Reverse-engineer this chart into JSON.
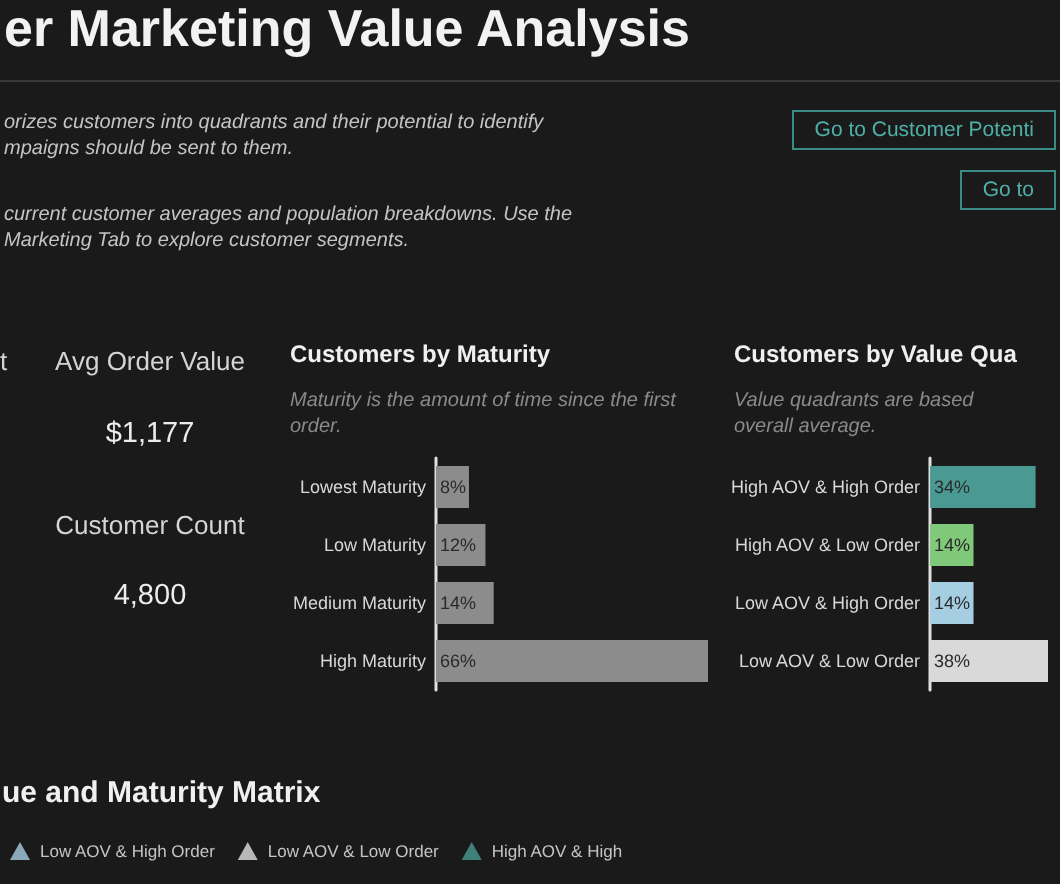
{
  "chart_data": [
    {
      "type": "other",
      "title": "er Marketing Value Analysis",
      "annotations": [
        "orizes customers into quadrants and their potential to identify",
        "mpaigns should be sent to them.",
        "current customer averages and population breakdowns. Use the",
        "Marketing Tab to explore customer segments.",
        "Go to Customer Potenti",
        "Go to"
      ]
    },
    {
      "type": "other",
      "annotations": [
        "t",
        "Avg Order Value",
        "$1,177",
        "Customer Count",
        "4,800"
      ]
    },
    {
      "type": "bar",
      "orientation": "horizontal",
      "title": "Customers by Maturity",
      "subtitle": "Maturity is the amount of time since the first order.",
      "categories": [
        "Lowest Maturity",
        "Low Maturity",
        "Medium Maturity",
        "High Maturity"
      ],
      "values": [
        8,
        12,
        14,
        66
      ],
      "value_labels": [
        "8%",
        "12%",
        "14%",
        "66%"
      ],
      "color": "#8c8c8c"
    },
    {
      "type": "bar",
      "orientation": "horizontal",
      "title": "Customers by Value Qua",
      "subtitle": "Value quadrants are based\noverall average.",
      "categories": [
        "High AOV & High Order",
        "High AOV & Low Order",
        "Low AOV & High Order",
        "Low AOV & Low Order"
      ],
      "values": [
        34,
        14,
        14,
        38
      ],
      "value_labels": [
        "34%",
        "14%",
        "14%",
        "38%"
      ],
      "colors": [
        "#4a9a93",
        "#80c97a",
        "#a6cee3",
        "#d9d9d9"
      ]
    },
    {
      "type": "other",
      "title": "ue and Maturity Matrix",
      "series": [
        {
          "name": "Low AOV & High Order",
          "color": "#a6cee3"
        },
        {
          "name": "Low AOV & Low Order",
          "color": "#e0e0e0"
        },
        {
          "name": "High AOV & High",
          "color": "#4a9a93"
        }
      ],
      "legend": "top left"
    }
  ]
}
